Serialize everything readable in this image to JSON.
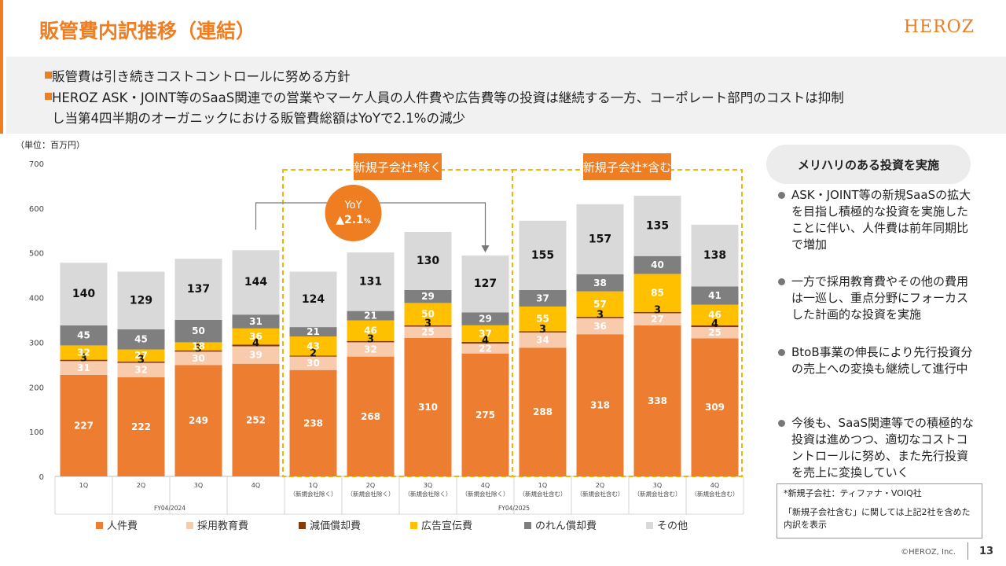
{
  "header": {
    "title": "販管費内訳推移（連結）",
    "logo": "HEROZ"
  },
  "summary": {
    "bullets": [
      "販管費は引き続きコストコントロールに努める方針",
      "HEROZ ASK・JOINT等のSaaS関連での営業やマーケ人員の人件費や広告費等の投資は継続する一方、コーポレート部門のコストは抑制",
      "し当第4四半期のオーガニックにおける販管費総額はYoYで2.1%の減少"
    ]
  },
  "unit_label": "（単位：百万円）",
  "chart_data": {
    "type": "bar",
    "stacked": true,
    "title": "",
    "xlabel": "",
    "ylabel": "",
    "ylim": [
      0,
      700
    ],
    "yticks": [
      0,
      100,
      200,
      300,
      400,
      500,
      600,
      700
    ],
    "categories": [
      "1Q",
      "2Q",
      "3Q",
      "4Q",
      "1Q",
      "2Q",
      "3Q",
      "4Q",
      "1Q",
      "2Q",
      "3Q",
      "4Q"
    ],
    "category_sublabels": [
      "",
      "",
      "",
      "",
      "（新規会社除く）",
      "（新規会社除く）",
      "（新規会社除く）",
      "（新規会社除く）",
      "（新規会社含む）",
      "（新規会社含む）",
      "（新規会社含む）",
      "（新規会社含む）"
    ],
    "fiscal_groups": [
      {
        "label": "FY04/2024",
        "span": 4
      },
      {
        "label": "FY04/2025",
        "span": 8
      }
    ],
    "series": [
      {
        "name": "人件費",
        "color": "#ed7d31",
        "values": [
          227,
          222,
          249,
          252,
          238,
          268,
          310,
          275,
          288,
          318,
          338,
          309
        ]
      },
      {
        "name": "採用教育費",
        "color": "#f8cbad",
        "values": [
          31,
          32,
          30,
          39,
          30,
          32,
          25,
          22,
          34,
          36,
          27,
          25
        ]
      },
      {
        "name": "減価償却費",
        "color": "#843c0c",
        "values": [
          3,
          3,
          3,
          4,
          2,
          3,
          3,
          4,
          3,
          3,
          3,
          4
        ]
      },
      {
        "name": "広告宣伝費",
        "color": "#ffc000",
        "values": [
          32,
          27,
          18,
          36,
          43,
          46,
          50,
          37,
          55,
          57,
          85,
          46
        ]
      },
      {
        "name": "のれん償却費",
        "color": "#7f7f7f",
        "values": [
          45,
          45,
          50,
          31,
          21,
          21,
          29,
          29,
          37,
          38,
          40,
          41
        ]
      },
      {
        "name": "その他",
        "color": "#d9d9d9",
        "values": [
          140,
          129,
          137,
          144,
          124,
          131,
          130,
          127,
          155,
          157,
          135,
          138
        ]
      }
    ],
    "legend_position": "bottom",
    "group_boxes": [
      {
        "label": "新規子会社*除く",
        "from": 4,
        "to": 7
      },
      {
        "label": "新規子会社*含む",
        "from": 8,
        "to": 11
      }
    ],
    "yoy_callout": {
      "title": "YoY",
      "value": "▲2.1",
      "unit": "%",
      "from": 3,
      "to": 7
    }
  },
  "right_panel": {
    "heading": "メリハリのある投資を実施",
    "bullets": [
      "ASK・JOINT等の新規SaaSの拡大を目指し積極的な投資を実施したことに伴い、人件費は前年同期比で増加",
      "一方で採用教育費やその他の費用は一巡し、重点分野にフォーカスした計画的な投資を実施",
      "BtoB事業の伸長により先行投資分の売上への変換も継続して進行中",
      "今後も、SaaS関連等での積極的な投資は進めつつ、適切なコストコントロールに努め、また先行投資を売上に変換していく"
    ]
  },
  "note": {
    "line1": "*新規子会社：ティファナ・VOIQ社",
    "line2": "「新規子会社含む」に関しては上記2社を含めた内訳を表示"
  },
  "footer": {
    "copyright": "©HEROZ, Inc.",
    "page_number": "13"
  }
}
